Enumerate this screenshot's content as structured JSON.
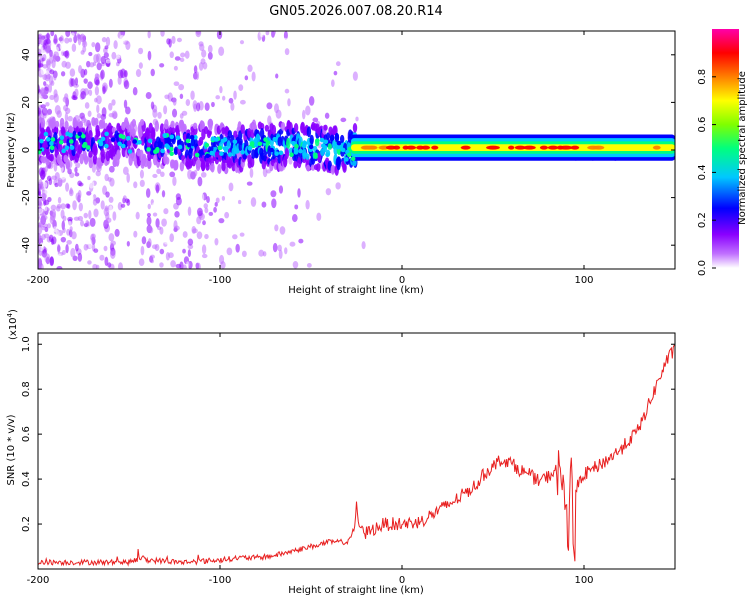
{
  "page": {
    "title": "GN05.2026.007.08.20.R14"
  },
  "colorbar": {
    "label": "Normalized spectral amplitude",
    "ticks": [
      "0.0",
      "0.2",
      "0.4",
      "0.6",
      "0.8"
    ],
    "tick_values": [
      0.0,
      0.2,
      0.4,
      0.6,
      0.8
    ],
    "range": [
      0,
      1
    ],
    "colormap": [
      "#ffffff",
      "#8a00ff",
      "#0000ff",
      "#00c8ff",
      "#00ff7f",
      "#7fff00",
      "#ffff00",
      "#ff7f00",
      "#ff0000",
      "#ff00aa"
    ]
  },
  "chart_data": [
    {
      "type": "heatmap",
      "title": "GN05.2026.007.08.20.R14",
      "xlabel": "Height of straight line (km)",
      "ylabel": "Frequency (Hz)",
      "xlim": [
        -200,
        150
      ],
      "ylim": [
        -50,
        50
      ],
      "x_ticks": [
        -200,
        -100,
        0,
        100
      ],
      "x_tick_labels": [
        "-200",
        "-100",
        "0",
        "100"
      ],
      "y_ticks": [
        -40,
        -20,
        0,
        20,
        40
      ],
      "y_tick_labels": [
        "-40",
        "-20",
        "0",
        "20",
        "40"
      ],
      "grid": false,
      "colors": {
        "band_core": "#ff0000",
        "band_mid": "#00ff7f",
        "band_edge": "#0000ff",
        "scatter": "#8a00ff"
      },
      "ridge": {
        "description_points_x": [
          -200,
          -150,
          -100,
          -60,
          -30,
          -20,
          0,
          20,
          50,
          80,
          100,
          150
        ],
        "center_freq_hz": [
          3,
          3,
          1,
          2,
          0,
          1,
          1,
          1,
          1,
          1,
          0,
          1
        ],
        "peak_amplitude": [
          0.35,
          0.3,
          0.45,
          0.55,
          0.6,
          0.85,
          0.95,
          0.9,
          0.95,
          0.95,
          0.9,
          0.85
        ]
      }
    },
    {
      "type": "line",
      "xlabel": "Height of straight line (km)",
      "ylabel": "SNR (10 * v/v)",
      "y_multiplier": "(x10⁴)",
      "y_multiplier_base": "(x10",
      "y_multiplier_exp": "4",
      "y_multiplier_close": ")",
      "xlim": [
        -200,
        150
      ],
      "ylim": [
        0,
        1.05
      ],
      "x_ticks": [
        -200,
        -100,
        0,
        100
      ],
      "x_tick_labels": [
        "-200",
        "-100",
        "0",
        "100"
      ],
      "y_ticks": [
        0.2,
        0.4,
        0.6,
        0.8,
        1.0
      ],
      "y_tick_labels": [
        "0.2",
        "0.4",
        "0.6",
        "0.8",
        "1.0"
      ],
      "grid": false,
      "color": "#e82020",
      "series": [
        {
          "x": [
            -200,
            -180,
            -160,
            -150,
            -143,
            -140,
            -120,
            -100,
            -90,
            -80,
            -70,
            -60,
            -50,
            -40,
            -30,
            -26,
            -25,
            -24,
            -20,
            -10,
            0,
            10,
            20,
            30,
            40,
            45,
            50,
            55,
            60,
            65,
            70,
            75,
            80,
            85,
            88,
            90,
            91,
            92,
            93,
            94,
            95,
            96,
            100,
            110,
            120,
            130,
            135,
            140,
            145,
            150
          ],
          "y": [
            0.03,
            0.03,
            0.03,
            0.03,
            0.05,
            0.04,
            0.03,
            0.04,
            0.05,
            0.05,
            0.06,
            0.08,
            0.1,
            0.12,
            0.12,
            0.18,
            0.3,
            0.2,
            0.16,
            0.2,
            0.2,
            0.21,
            0.26,
            0.31,
            0.37,
            0.42,
            0.46,
            0.49,
            0.47,
            0.44,
            0.42,
            0.39,
            0.41,
            0.44,
            0.4,
            0.25,
            0.1,
            0.3,
            0.55,
            0.2,
            0.12,
            0.35,
            0.42,
            0.47,
            0.53,
            0.62,
            0.72,
            0.82,
            0.92,
            0.98
          ]
        }
      ]
    }
  ]
}
